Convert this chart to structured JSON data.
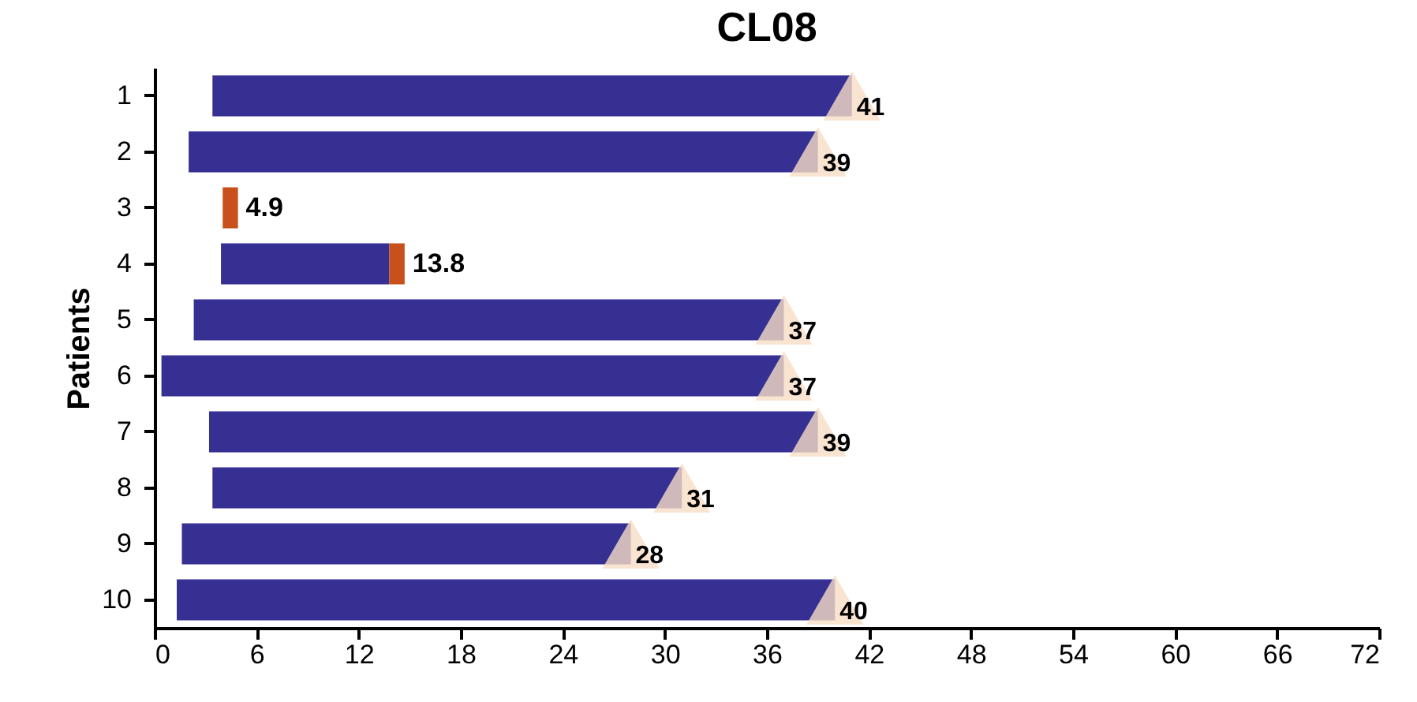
{
  "chart_data": {
    "type": "bar",
    "orientation": "horizontal",
    "title": "CL08",
    "ylabel": "Patients",
    "categories": [
      "1",
      "2",
      "3",
      "4",
      "5",
      "6",
      "7",
      "8",
      "9",
      "10"
    ],
    "series": [
      {
        "color": "#363093",
        "base": [
          3.4,
          2.0,
          null,
          3.9,
          2.3,
          0.4,
          3.2,
          3.4,
          1.6,
          1.3
        ],
        "values": [
          37.6,
          37.0,
          null,
          9.9,
          34.7,
          36.6,
          35.8,
          27.6,
          26.4,
          38.7
        ],
        "value_labels": [
          null,
          null,
          null,
          "13.8",
          null,
          null,
          null,
          null,
          null,
          null
        ]
      },
      {
        "color": "#c8501a",
        "base": [
          null,
          null,
          4.0,
          13.8,
          null,
          null,
          null,
          null,
          null,
          null
        ],
        "values": [
          null,
          null,
          0.9,
          0.9,
          null,
          null,
          null,
          null,
          null,
          null
        ],
        "value_labels": [
          null,
          null,
          "4.9",
          null,
          null,
          null,
          null,
          null,
          null,
          null
        ]
      },
      {
        "type": "scatter",
        "color": "#f8dcc6",
        "marker": "triangle",
        "values": [
          41,
          39,
          null,
          null,
          37,
          37,
          39,
          31,
          28,
          40
        ],
        "value_labels": [
          "41",
          "39",
          null,
          null,
          "37",
          "37",
          "39",
          "31",
          "28",
          "40"
        ]
      }
    ],
    "xlim": [
      0,
      72
    ],
    "xticks": [
      0,
      6,
      12,
      18,
      24,
      30,
      36,
      42,
      48,
      54,
      60,
      66,
      72
    ],
    "grid": false
  }
}
